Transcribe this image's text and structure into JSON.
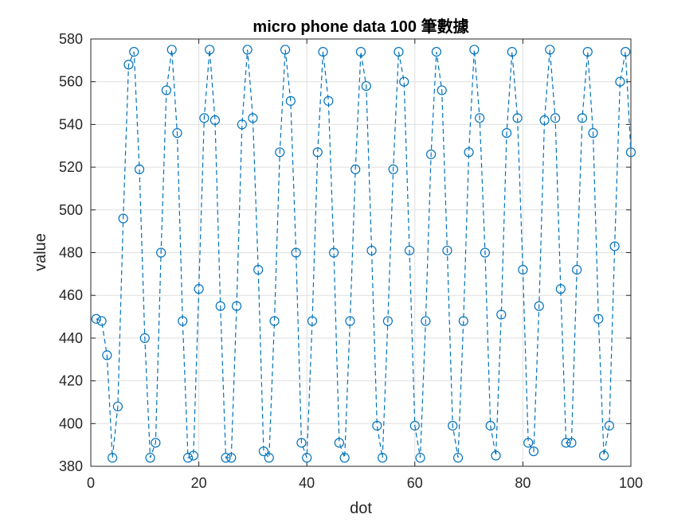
{
  "chart_data": {
    "type": "line",
    "title": "micro phone data 100 筆數據",
    "xlabel": "dot",
    "ylabel": "value",
    "xlim": [
      0,
      100
    ],
    "ylim": [
      380,
      580
    ],
    "x_ticks": [
      "0",
      "20",
      "40",
      "60",
      "80",
      "100"
    ],
    "y_ticks": [
      "380",
      "400",
      "420",
      "440",
      "460",
      "480",
      "500",
      "520",
      "540",
      "560",
      "580"
    ],
    "grid": true,
    "line_style": "dashed",
    "marker": "circle",
    "color": "#0072BD",
    "series": [
      {
        "x": [
          1,
          2,
          3,
          4,
          5,
          6,
          7,
          8,
          9,
          10,
          11,
          12,
          13,
          14,
          15,
          16,
          17,
          18,
          19,
          20,
          21,
          22,
          23,
          24,
          25,
          26,
          27,
          28,
          29,
          30,
          31,
          32,
          33,
          34,
          35,
          36,
          37,
          38,
          39,
          40,
          41,
          42,
          43,
          44,
          45,
          46,
          47,
          48,
          49,
          50,
          51,
          52,
          53,
          54,
          55,
          56,
          57,
          58,
          59,
          60,
          61,
          62,
          63,
          64,
          65,
          66,
          67,
          68,
          69,
          70,
          71,
          72,
          73,
          74,
          75,
          76,
          77,
          78,
          79,
          80,
          81,
          82,
          83,
          84,
          85,
          86,
          87,
          88,
          89,
          90,
          91,
          92,
          93,
          94,
          95,
          96,
          97,
          98,
          99,
          100
        ],
        "values": [
          449,
          448,
          432,
          384,
          408,
          496,
          568,
          574,
          519,
          440,
          384,
          391,
          480,
          556,
          575,
          536,
          448,
          384,
          385,
          463,
          543,
          575,
          542,
          455,
          384,
          384,
          455,
          540,
          575,
          543,
          472,
          387,
          384,
          448,
          527,
          575,
          551,
          480,
          391,
          384,
          448,
          527,
          574,
          551,
          480,
          391,
          384,
          448,
          519,
          574,
          558,
          481,
          399,
          384,
          448,
          519,
          574,
          560,
          481,
          399,
          384,
          448,
          526,
          574,
          556,
          481,
          399,
          384,
          448,
          527,
          575,
          543,
          480,
          399,
          385,
          451,
          536,
          574,
          543,
          472,
          391,
          387,
          455,
          542,
          575,
          543,
          463,
          391,
          391,
          472,
          543,
          574,
          536,
          449,
          385,
          399,
          483,
          560,
          574,
          527
        ]
      }
    ]
  }
}
